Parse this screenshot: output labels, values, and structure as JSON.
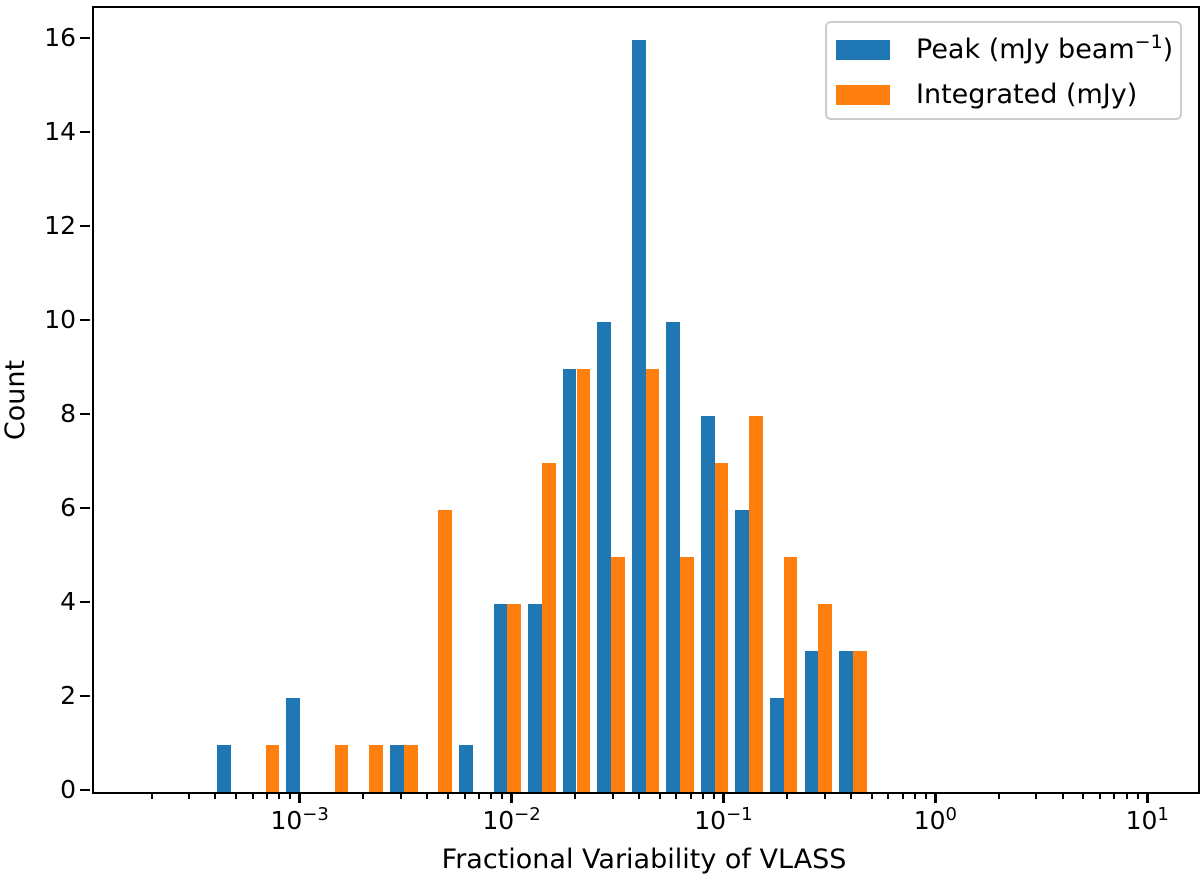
{
  "chart_data": {
    "type": "histogram",
    "title": "",
    "xlabel": "Fractional Variability of VLASS",
    "ylabel": "Count",
    "x_scale": "log",
    "xlim_log10": [
      -3.98,
      1.23
    ],
    "ylim": [
      0,
      16.68
    ],
    "grid": false,
    "yticks": [
      0,
      2,
      4,
      6,
      8,
      10,
      12,
      14,
      16
    ],
    "xticks": [
      {
        "log10": -3,
        "base": "10",
        "exp": "−3"
      },
      {
        "log10": -2,
        "base": "10",
        "exp": "−2"
      },
      {
        "log10": -1,
        "base": "10",
        "exp": "−1"
      },
      {
        "log10": 0,
        "base": "10",
        "exp": "0"
      },
      {
        "log10": 1,
        "base": "10",
        "exp": "1"
      }
    ],
    "bins": {
      "start_log10": -3.4145,
      "width_log10": 0.163,
      "count": 19,
      "first_edge_value": 0.000385,
      "last_edge_value": 0.47
    },
    "series": [
      {
        "key": "peak",
        "full_label": "Peak (mJy beam⁻¹)",
        "label_main": "Peak (mJy beam",
        "label_sup": "−1",
        "label_end": ")",
        "color": "#1f77b4",
        "counts": [
          1,
          0,
          2,
          0,
          0,
          1,
          0,
          1,
          4,
          4,
          9,
          10,
          16,
          10,
          8,
          6,
          2,
          3,
          3
        ]
      },
      {
        "key": "integrated",
        "full_label": "Integrated (mJy)",
        "label_main": "Integrated (mJy)",
        "label_sup": "",
        "label_end": "",
        "color": "#ff7f0e",
        "counts": [
          0,
          1,
          0,
          1,
          1,
          1,
          6,
          0,
          4,
          7,
          9,
          5,
          9,
          5,
          7,
          8,
          5,
          4,
          3
        ]
      }
    ],
    "legend": {
      "location": "upper right",
      "border_color": "#cccccc"
    }
  }
}
